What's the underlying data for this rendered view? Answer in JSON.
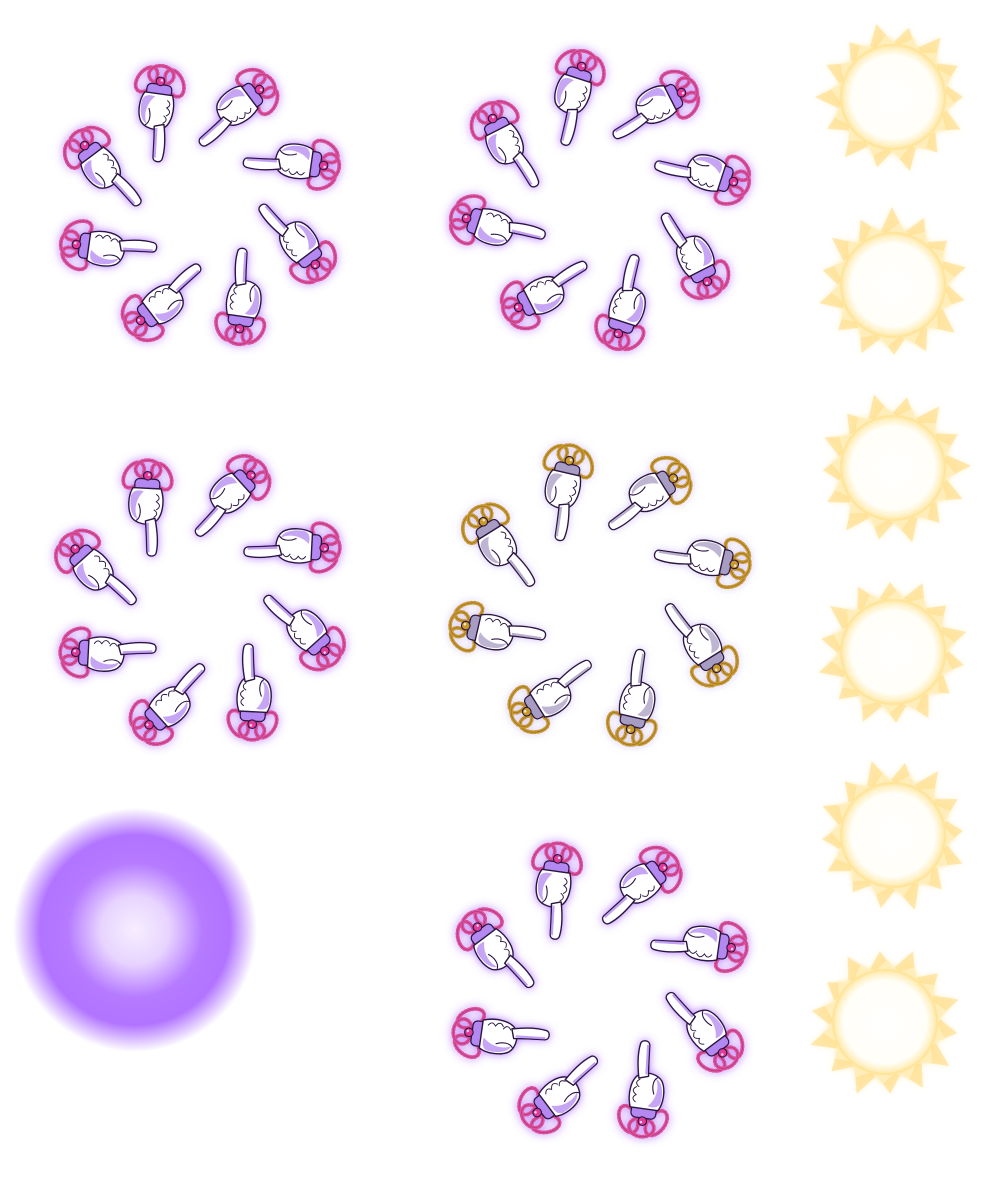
{
  "sprite_sheet": {
    "background": "#ffffff",
    "colors": {
      "violet_glow": "#9b4dff",
      "violet_shade": "#b388f0",
      "glove_white": "#ffffff",
      "outline": "#2a1440",
      "bead_pink": "#e0509a",
      "gem_magenta": "#e03a9a",
      "gray_shade": "#a79cc2",
      "bead_gold": "#c99a2a",
      "sun_yellow": "#ffd878",
      "sun_white": "#fffdf2",
      "orb_center": "#f4eaff"
    },
    "hand_rings": [
      {
        "name": "ring-purple-a",
        "variant": "purple",
        "count": 8,
        "icon": "pointing-glove-icon"
      },
      {
        "name": "ring-purple-b",
        "variant": "purple",
        "count": 8,
        "icon": "pointing-glove-icon"
      },
      {
        "name": "ring-purple-c",
        "variant": "purple",
        "count": 8,
        "icon": "pointing-glove-icon"
      },
      {
        "name": "ring-gray-gold",
        "variant": "gray",
        "count": 8,
        "icon": "pointing-glove-icon"
      },
      {
        "name": "ring-purple-d",
        "variant": "purple",
        "count": 8,
        "icon": "pointing-glove-icon"
      }
    ],
    "sun_frames": {
      "count": 6,
      "icon": "sun-burst-icon"
    },
    "glow_orb": {
      "icon": "glow-orb-icon"
    }
  }
}
